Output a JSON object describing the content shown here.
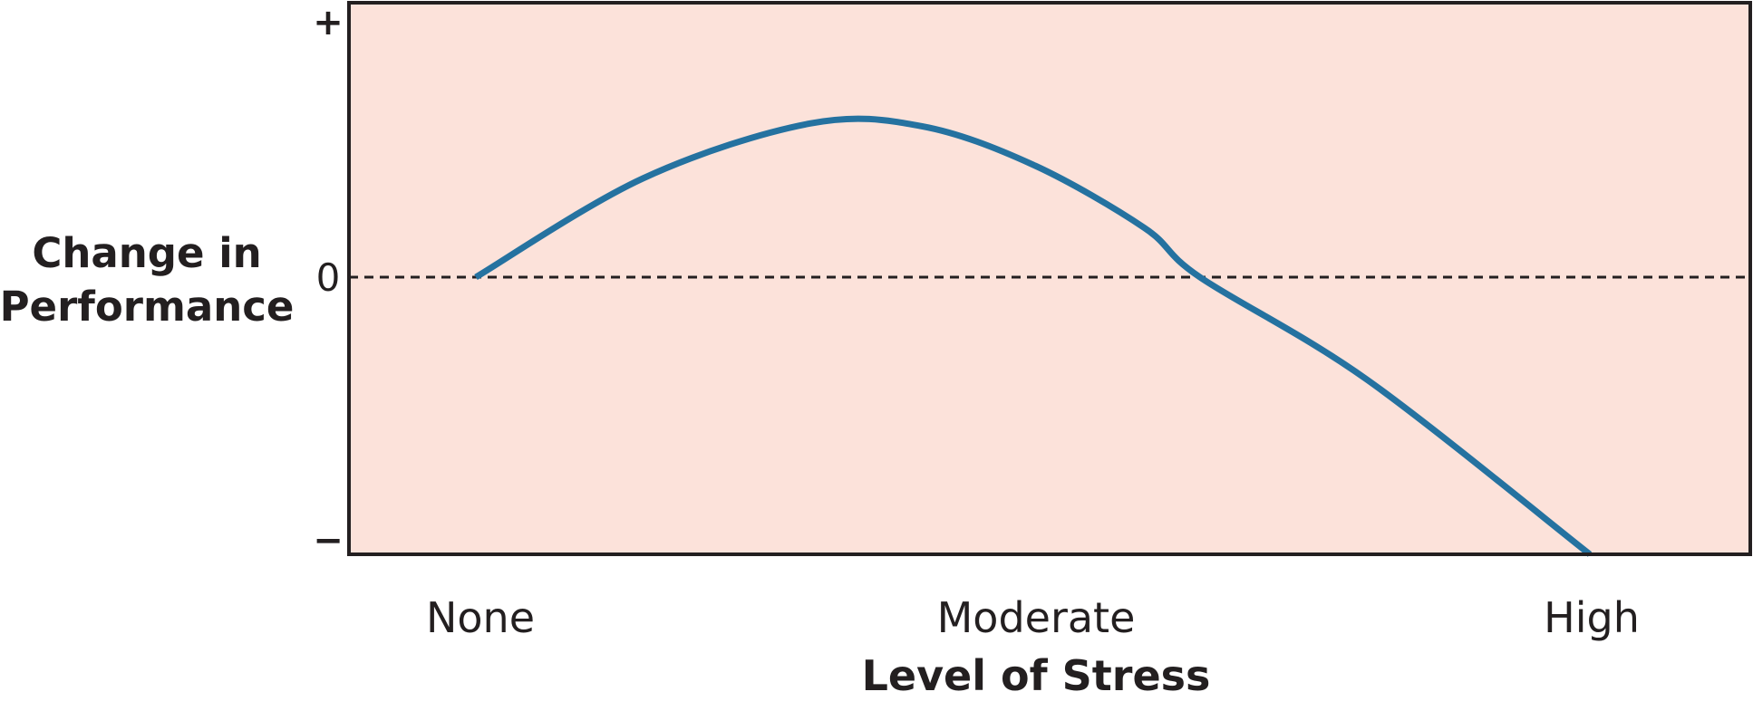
{
  "chart_data": {
    "type": "line",
    "title": "",
    "xlabel": "Level of Stress",
    "ylabel_lines": [
      "Change in",
      "Performance"
    ],
    "x_ticks": [
      "None",
      "Moderate",
      "High"
    ],
    "y_ticks": {
      "top": "+",
      "zero": "0",
      "bottom": "−"
    },
    "xlim": [
      0,
      1
    ],
    "ylim": [
      -1,
      1
    ],
    "zero_line": "dashed",
    "grid": false,
    "series": [
      {
        "color": "#2572a0",
        "x": [
          0.0,
          0.15,
          0.3,
          0.4,
          0.5,
          0.6,
          0.65,
          0.8,
          1.0
        ],
        "y": [
          0.0,
          0.36,
          0.56,
          0.55,
          0.41,
          0.18,
          0.0,
          -0.37,
          -1.0
        ]
      }
    ],
    "colors": {
      "plot_background": "#fce2da",
      "axis": "#231f20",
      "line": "#2572a0"
    }
  }
}
